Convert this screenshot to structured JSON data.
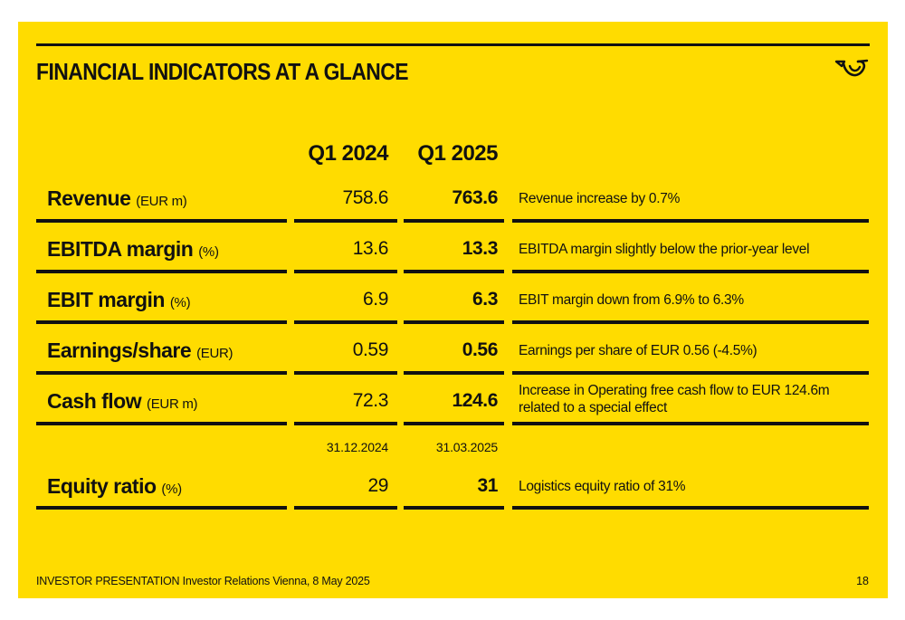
{
  "title": "FINANCIAL INDICATORS AT A GLANCE",
  "logo_icon": "posthorn-logo-icon",
  "columns": {
    "q1_prev": "Q1 2024",
    "q1_curr": "Q1 2025"
  },
  "rows": [
    {
      "label": "Revenue",
      "unit": "(EUR m)",
      "prev": "758.6",
      "curr": "763.6",
      "comment": "Revenue increase by 0.7%"
    },
    {
      "label": "EBITDA margin",
      "unit": "(%)",
      "prev": "13.6",
      "curr": "13.3",
      "comment": "EBITDA margin slightly below the prior-year level"
    },
    {
      "label": "EBIT margin",
      "unit": "(%)",
      "prev": "6.9",
      "curr": "6.3",
      "comment": "EBIT margin down from 6.9% to 6.3%"
    },
    {
      "label": "Earnings/share",
      "unit": "(EUR)",
      "prev": "0.59",
      "curr": "0.56",
      "comment": "Earnings per share of EUR 0.56 (-4.5%)"
    },
    {
      "label": "Cash flow",
      "unit": "(EUR m)",
      "prev": "72.3",
      "curr": "124.6",
      "comment": "Increase in Operating free cash flow to EUR 124.6m related to a special effect"
    }
  ],
  "dates": {
    "prev": "31.12.2024",
    "curr": "31.03.2025"
  },
  "equity": {
    "label": "Equity ratio",
    "unit": "(%)",
    "prev": "29",
    "curr": "31",
    "comment": "Logistics equity ratio of 31%"
  },
  "footer": {
    "text": "INVESTOR PRESENTATION Investor Relations Vienna, 8 May 2025",
    "page": "18"
  },
  "colors": {
    "background": "#FFDC00",
    "text": "#111111"
  }
}
